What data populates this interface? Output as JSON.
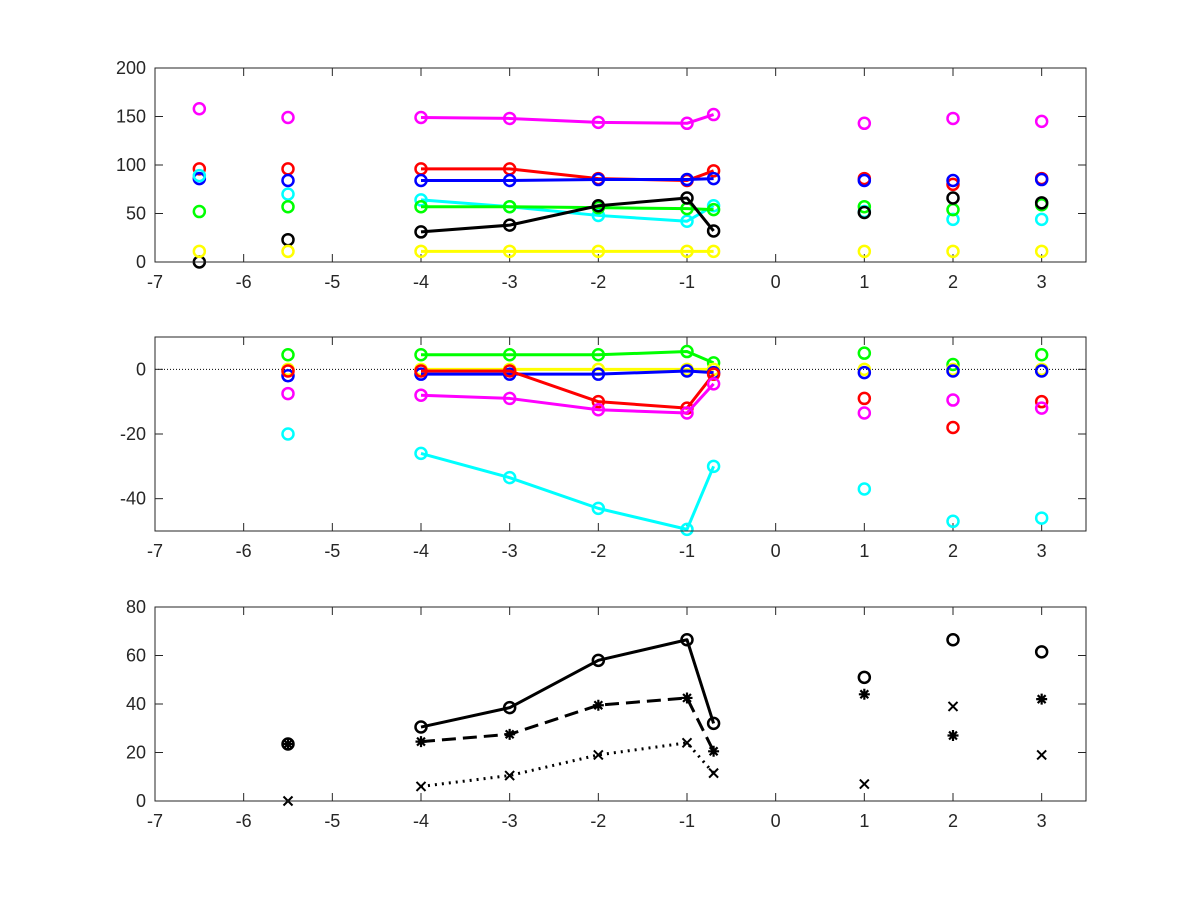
{
  "chart_data": [
    {
      "type": "scatter",
      "title": "",
      "xlabel": "",
      "ylabel": "",
      "xlim": [
        -7,
        3.5
      ],
      "ylim": [
        0,
        200
      ],
      "xticks": [
        -7,
        -6,
        -5,
        -4,
        -3,
        -2,
        -1,
        0,
        1,
        2,
        3
      ],
      "yticks": [
        0,
        50,
        100,
        150,
        200
      ],
      "grid": false,
      "legend": "none",
      "series": [
        {
          "color": "#ff00ff",
          "connected_range": [
            2,
            6
          ],
          "marker": "circle",
          "linestyle": "solid",
          "x": [
            -6.5,
            -5.5,
            -4,
            -3,
            -2,
            -1,
            -0.7,
            1,
            2,
            3
          ],
          "y": [
            158,
            149,
            149,
            148,
            144,
            143,
            152,
            143,
            148,
            145
          ]
        },
        {
          "color": "#ff0000",
          "connected_range": [
            2,
            6
          ],
          "marker": "circle",
          "linestyle": "solid",
          "x": [
            -6.5,
            -5.5,
            -4,
            -3,
            -2,
            -1,
            -0.7,
            1,
            2,
            3
          ],
          "y": [
            96,
            96,
            96,
            96,
            86,
            84,
            94,
            86,
            80,
            86
          ]
        },
        {
          "color": "#0000ff",
          "connected_range": [
            2,
            6
          ],
          "marker": "circle",
          "linestyle": "solid",
          "x": [
            -6.5,
            -5.5,
            -4,
            -3,
            -2,
            -1,
            -0.7,
            1,
            2,
            3
          ],
          "y": [
            86,
            84,
            84,
            84,
            85,
            85,
            86,
            84,
            84,
            85
          ]
        },
        {
          "color": "#00ffff",
          "connected_range": [
            2,
            6
          ],
          "marker": "circle",
          "linestyle": "solid",
          "x": [
            -6.5,
            -5.5,
            -4,
            -3,
            -2,
            -1,
            -0.7,
            1,
            2,
            3
          ],
          "y": [
            89,
            70,
            64,
            57,
            48,
            42,
            58,
            52,
            44,
            44
          ]
        },
        {
          "color": "#00ff00",
          "connected_range": [
            2,
            6
          ],
          "marker": "circle",
          "linestyle": "solid",
          "x": [
            -6.5,
            -5.5,
            -4,
            -3,
            -2,
            -1,
            -0.7,
            1,
            2,
            3
          ],
          "y": [
            52,
            57,
            57,
            57,
            56,
            55,
            54,
            57,
            54,
            59
          ]
        },
        {
          "color": "#000000",
          "connected_range": [
            2,
            6
          ],
          "marker": "circle",
          "linestyle": "solid",
          "x": [
            -6.5,
            -5.5,
            -4,
            -3,
            -2,
            -1,
            -0.7,
            1,
            2,
            3
          ],
          "y": [
            0,
            23,
            31,
            38,
            58,
            66,
            32,
            51,
            66,
            61
          ]
        },
        {
          "color": "#ffff00",
          "connected_range": [
            2,
            6
          ],
          "marker": "circle",
          "linestyle": "solid",
          "x": [
            -6.5,
            -5.5,
            -4,
            -3,
            -2,
            -1,
            -0.7,
            1,
            2,
            3
          ],
          "y": [
            11,
            11,
            11,
            11,
            11,
            11,
            11,
            11,
            11,
            11
          ]
        }
      ]
    },
    {
      "type": "scatter",
      "title": "",
      "xlabel": "",
      "ylabel": "",
      "xlim": [
        -7,
        3.5
      ],
      "ylim": [
        -50,
        10
      ],
      "xticks": [
        -7,
        -6,
        -5,
        -4,
        -3,
        -2,
        -1,
        0,
        1,
        2,
        3
      ],
      "yticks": [
        -40,
        -20,
        0
      ],
      "zero_line": "dotted",
      "grid": false,
      "legend": "none",
      "series": [
        {
          "color": "#00ff00",
          "connected_range": [
            1,
            5
          ],
          "marker": "circle",
          "linestyle": "solid",
          "x": [
            -5.5,
            -4,
            -3,
            -2,
            -1,
            -0.7,
            1,
            2,
            3
          ],
          "y": [
            4.5,
            4.5,
            4.5,
            4.5,
            5.5,
            2,
            5,
            1.5,
            4.5
          ]
        },
        {
          "color": "#ffff00",
          "connected_range": [
            1,
            5
          ],
          "marker": "circle",
          "linestyle": "solid",
          "x": [
            -5.5,
            -4,
            -3,
            -2,
            -1,
            -0.7,
            1,
            2,
            3
          ],
          "y": [
            0,
            0,
            0,
            0,
            0,
            0,
            0,
            0,
            0
          ]
        },
        {
          "color": "#0000ff",
          "connected_range": [
            1,
            5
          ],
          "marker": "circle",
          "linestyle": "solid",
          "x": [
            -5.5,
            -4,
            -3,
            -2,
            -1,
            -0.7,
            1,
            2,
            3
          ],
          "y": [
            -2,
            -1.5,
            -1.5,
            -1.5,
            -0.5,
            -1,
            -1,
            -0.5,
            -0.5
          ]
        },
        {
          "color": "#ff0000",
          "connected_range": [
            1,
            5
          ],
          "marker": "circle",
          "linestyle": "solid",
          "x": [
            -5.5,
            -4,
            -3,
            -2,
            -1,
            -0.7,
            1,
            2,
            3
          ],
          "y": [
            -0.5,
            -0.5,
            -0.5,
            -10,
            -12,
            -1.5,
            -9,
            -18,
            -10
          ]
        },
        {
          "color": "#ff00ff",
          "connected_range": [
            1,
            5
          ],
          "marker": "circle",
          "linestyle": "solid",
          "x": [
            -5.5,
            -4,
            -3,
            -2,
            -1,
            -0.7,
            1,
            2,
            3
          ],
          "y": [
            -7.5,
            -8,
            -9,
            -12.5,
            -13.5,
            -4.5,
            -13.5,
            -9.5,
            -12
          ]
        },
        {
          "color": "#00ffff",
          "connected_range": [
            1,
            5
          ],
          "marker": "circle",
          "linestyle": "solid",
          "x": [
            -5.5,
            -4,
            -3,
            -2,
            -1,
            -0.7,
            1,
            2,
            3
          ],
          "y": [
            -20,
            -26,
            -33.5,
            -43,
            -49.5,
            -30,
            -37,
            -47,
            -46
          ]
        }
      ]
    },
    {
      "type": "scatter",
      "title": "",
      "xlabel": "",
      "ylabel": "",
      "xlim": [
        -7,
        3.5
      ],
      "ylim": [
        0,
        80
      ],
      "xticks": [
        -7,
        -6,
        -5,
        -4,
        -3,
        -2,
        -1,
        0,
        1,
        2,
        3
      ],
      "yticks": [
        0,
        20,
        40,
        60,
        80
      ],
      "grid": false,
      "legend": "none",
      "series": [
        {
          "color": "#000000",
          "connected_range": [
            1,
            5
          ],
          "marker": "circle",
          "linestyle": "solid",
          "x": [
            -5.5,
            -4,
            -3,
            -2,
            -1,
            -0.7,
            1,
            2,
            3
          ],
          "y": [
            23.5,
            30.5,
            38.5,
            58,
            66.5,
            32,
            51,
            66.5,
            61.5
          ]
        },
        {
          "color": "#000000",
          "connected_range": [
            1,
            5
          ],
          "marker": "asterisk",
          "linestyle": "dashed",
          "x": [
            -5.5,
            -4,
            -3,
            -2,
            -1,
            -0.7,
            1,
            2,
            3
          ],
          "y": [
            23.5,
            24.5,
            27.5,
            39.5,
            42.5,
            20.5,
            44,
            27,
            42
          ]
        },
        {
          "color": "#000000",
          "connected_range": [
            1,
            5
          ],
          "marker": "x",
          "linestyle": "dotted",
          "x": [
            -5.5,
            -4,
            -3,
            -2,
            -1,
            -0.7,
            1,
            2,
            3
          ],
          "y": [
            0,
            6,
            10.5,
            19,
            24,
            11.5,
            7,
            39,
            19
          ]
        }
      ]
    }
  ]
}
